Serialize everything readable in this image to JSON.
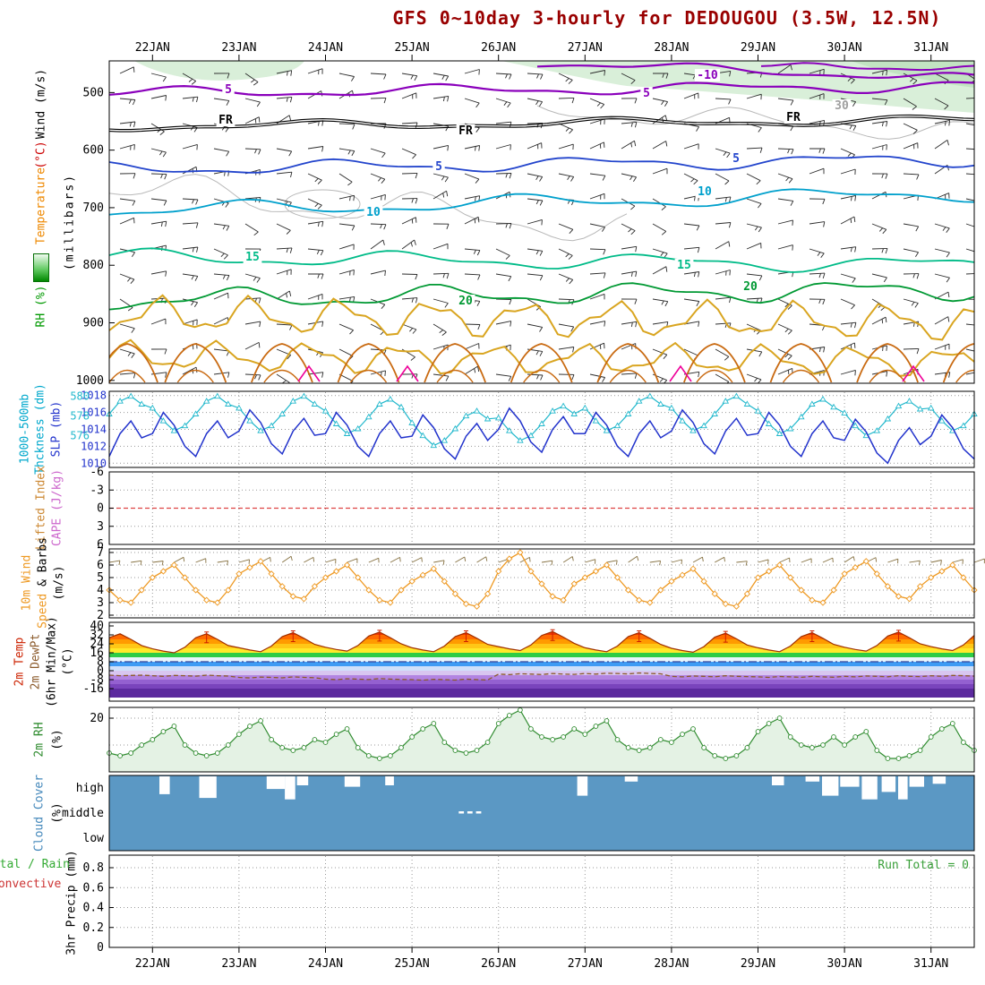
{
  "title": {
    "text": "GFS 0~10day 3-hourly for DEDOUGOU (3.5W, 12.5N)",
    "color": "#990000"
  },
  "x_axis": {
    "day_labels": [
      "22JAN",
      "23JAN",
      "24JAN",
      "25JAN",
      "26JAN",
      "27JAN",
      "28JAN",
      "29JAN",
      "30JAN",
      "31JAN"
    ]
  },
  "left_labels": {
    "p1": [
      {
        "text": "Wind (m/s)",
        "color": "#000000"
      },
      {
        "text": "(°C)",
        "color": "#cc0000"
      },
      {
        "text": "Temperature",
        "color": "#ee8800"
      },
      {
        "text": "RH (%)",
        "color": "#009900"
      },
      {
        "text": "(millibars)",
        "color": "#000000"
      }
    ],
    "p2": [
      {
        "text": "1000-500mb",
        "color": "#00a8cc"
      },
      {
        "text": "Thckness (dm)",
        "color": "#00a8cc"
      },
      {
        "text": "SLP (mb)",
        "color": "#2233cc"
      }
    ],
    "p3": [
      {
        "text": "Lifted Index",
        "color": "#cc8833"
      },
      {
        "text": "CAPE (J/kg)",
        "color": "#cc66cc"
      }
    ],
    "p4": [
      {
        "text": "10m Wind",
        "color": "#ee9922"
      },
      {
        "text": "Speed",
        "color": "#ee9922"
      },
      {
        "text": "& Barbs",
        "color": "#000000"
      },
      {
        "text": "(m/s)",
        "color": "#000000"
      }
    ],
    "p5": [
      {
        "text": "2m Temp",
        "color": "#cc2200"
      },
      {
        "text": "2m DewPt",
        "color": "#8b5a2b"
      },
      {
        "text": "(6hr Min/Max)",
        "color": "#000000"
      },
      {
        "text": "(°C)",
        "color": "#000000"
      }
    ],
    "p6": [
      {
        "text": "2m RH",
        "color": "#2e8b2e"
      },
      {
        "text": "(%)",
        "color": "#000000"
      }
    ],
    "p7": [
      {
        "text": "Cloud Cover",
        "color": "#4488bb"
      },
      {
        "text": "(%)",
        "color": "#000000"
      }
    ],
    "p8": [
      {
        "text": "Total / Rain",
        "color": "#33aa33"
      },
      {
        "text": "Convective",
        "color": "#cc3333"
      },
      {
        "text": "3hr Precip (mm)",
        "color": "#000000"
      }
    ]
  },
  "chart_data": {
    "time": {
      "points": 81,
      "step_hours": 3,
      "first_day_label": "22JAN",
      "last_day_label": "31JAN"
    },
    "upper_air": {
      "type": "contour+barbs",
      "yticks": [
        500,
        600,
        700,
        800,
        900,
        1000
      ],
      "shading_color": "#d9efd9",
      "shading_color_dense": "#c2e4c2",
      "barb_color": "#2b2b2b",
      "contour_labels": [
        {
          "id": "purple-top-right",
          "label": "-10",
          "color": "#8a00bb"
        },
        {
          "id": "purple-main",
          "label": "5",
          "color": "#8a00bb"
        },
        {
          "id": "freezing-line",
          "label": "FR",
          "color": "#000000"
        },
        {
          "id": "blue-5",
          "label": "5",
          "color": "#2244cc"
        },
        {
          "id": "cyan-10",
          "label": "10",
          "color": "#00a0cc"
        },
        {
          "id": "teal-15",
          "label": "15",
          "color": "#00bb88"
        },
        {
          "id": "green-20",
          "label": "20",
          "color": "#009933"
        },
        {
          "id": "gray-rh",
          "label": "30",
          "color": "#9f9f9f"
        },
        {
          "id": "orange-rh",
          "label": "",
          "color": "#d9a520"
        },
        {
          "id": "orange-rh-inner",
          "label": "",
          "color": "#c96a11"
        },
        {
          "id": "magenta",
          "label": "",
          "color": "#ee0099"
        }
      ]
    },
    "slp_thickness": {
      "type": "line",
      "slp_ticks": [
        1018,
        1016,
        1014,
        1012,
        1010
      ],
      "thickness_ticks": [
        580,
        578,
        576
      ],
      "slp_color": "#2233cc",
      "thickness_color": "#22b8cc",
      "slp": [
        1010.8,
        1013.5,
        1015,
        1013,
        1013.5,
        1016,
        1014.5,
        1012,
        1010.8,
        1013.5,
        1015,
        1013,
        1013.8,
        1016.3,
        1014.8,
        1012.3,
        1011.1,
        1013.8,
        1015.3,
        1013.3,
        1013.5,
        1016,
        1014.5,
        1012,
        1010.8,
        1013.5,
        1015,
        1013,
        1013.2,
        1015.7,
        1014.2,
        1011.7,
        1010.5,
        1013.2,
        1014.7,
        1012.7,
        1014,
        1016.5,
        1015,
        1012.5,
        1011.3,
        1014,
        1015.5,
        1013.5,
        1013.5,
        1016,
        1014.5,
        1012,
        1010.8,
        1013.5,
        1015,
        1013,
        1013.8,
        1016.3,
        1014.8,
        1012.3,
        1011.1,
        1013.8,
        1015.3,
        1013.3,
        1013.5,
        1016,
        1014.5,
        1012,
        1010.8,
        1013.5,
        1015,
        1013,
        1012.7,
        1015.2,
        1013.7,
        1011.2,
        1010,
        1012.7,
        1014.2,
        1012.2,
        1013.2,
        1015.7,
        1014.2,
        1011.7,
        1010.5
      ],
      "thickness": [
        578.2,
        579.5,
        580,
        579.2,
        578.8,
        577.5,
        576.5,
        577,
        578.2,
        579.5,
        580,
        579.2,
        578.8,
        577.5,
        576.5,
        577,
        578.2,
        579.5,
        580,
        579.2,
        578.5,
        577.2,
        576.2,
        576.7,
        577.9,
        579.2,
        579.7,
        578.9,
        577.3,
        576,
        575,
        575.5,
        576.7,
        578,
        578.5,
        577.7,
        577.8,
        576.5,
        575.5,
        576,
        577.2,
        578.5,
        579,
        578.2,
        578.8,
        577.5,
        576.5,
        577,
        578.2,
        579.5,
        580,
        579.2,
        578.8,
        577.5,
        576.5,
        577,
        578.2,
        579.5,
        580,
        579.2,
        578.5,
        577.2,
        576.2,
        576.7,
        577.9,
        579.2,
        579.7,
        578.9,
        578.3,
        577,
        576,
        576.5,
        577.7,
        579,
        579.5,
        578.7,
        578.8,
        577.5,
        576.5,
        577,
        578.2
      ]
    },
    "lifted_index_cape": {
      "yticks": [
        -6,
        -3,
        0,
        3,
        6
      ],
      "zero_line_color": "#dd4444",
      "series_visible": false
    },
    "wind_10m": {
      "yticks": [
        7,
        6,
        5,
        4,
        3,
        2
      ],
      "color": "#ee9922",
      "barb_color": "#857040",
      "values": [
        4,
        3.2,
        3,
        4,
        5,
        5.5,
        6,
        5,
        4,
        3.2,
        3,
        4,
        5.3,
        5.8,
        6.3,
        5.3,
        4.3,
        3.5,
        3.3,
        4.3,
        5,
        5.5,
        6,
        5,
        4,
        3.2,
        3,
        4,
        4.7,
        5.2,
        5.7,
        4.7,
        3.7,
        2.9,
        2.7,
        3.7,
        5.5,
        6.5,
        7,
        5.5,
        4.5,
        3.5,
        3.2,
        4.5,
        5,
        5.5,
        6,
        5,
        4,
        3.2,
        3,
        4,
        4.7,
        5.2,
        5.7,
        4.7,
        3.7,
        2.9,
        2.7,
        3.7,
        5,
        5.5,
        6,
        5,
        4,
        3.2,
        3,
        4,
        5.3,
        5.8,
        6.3,
        5.3,
        4.3,
        3.5,
        3.3,
        4.3,
        5,
        5.5,
        6,
        5,
        4
      ]
    },
    "temp_2m": {
      "yticks": [
        40,
        32,
        24,
        16,
        8,
        0,
        -8,
        -16
      ],
      "temp_color": "#a03000",
      "dewpoint_color": "#8b5a2b",
      "refline_color": "#334499",
      "max_marker_color": "#cc2200",
      "temp": [
        29.5,
        33,
        28,
        22.5,
        19.5,
        17.5,
        16,
        21,
        29.5,
        33,
        28,
        22.5,
        20.5,
        18.5,
        17,
        22,
        30.5,
        34,
        29,
        23.5,
        21,
        19,
        17.5,
        22.5,
        31,
        34.5,
        29.5,
        24,
        20.5,
        18.5,
        17,
        22,
        30.5,
        34,
        29,
        23.5,
        21.5,
        19.5,
        18,
        23,
        31.5,
        35,
        30,
        24.5,
        20.5,
        18.5,
        17,
        22,
        30.5,
        34,
        29,
        23.5,
        20,
        18,
        16.5,
        21.5,
        30,
        33.5,
        28.5,
        23,
        20.5,
        18.5,
        17,
        22,
        30.5,
        34,
        29,
        23.5,
        21,
        19,
        17.5,
        22.5,
        31,
        34.5,
        29.5,
        24,
        21.5,
        19.5,
        18,
        23,
        31.5
      ],
      "dewpoint": [
        -4,
        -4.5,
        -4.2,
        -4,
        -4.5,
        -5,
        -4.2,
        -4.5,
        -4.9,
        -4,
        -4.5,
        -4.8,
        -6,
        -6.5,
        -5.7,
        -6,
        -6.4,
        -5.5,
        -6,
        -6.3,
        -7.5,
        -8,
        -7.2,
        -7.5,
        -7.9,
        -7,
        -7.5,
        -7.8,
        -8,
        -8.5,
        -7.7,
        -8,
        -8.4,
        -7.5,
        -8,
        -8.3,
        -3,
        -3.5,
        -2.7,
        -3,
        -3.4,
        -2.5,
        -3,
        -3.3,
        -2.5,
        -3,
        -2.2,
        -2.5,
        -2.9,
        -2,
        -2.5,
        -2.8,
        -5,
        -5.5,
        -4.7,
        -5,
        -5.4,
        -4.5,
        -5,
        -5.3,
        -5.5,
        -6,
        -5.2,
        -5.5,
        -5.9,
        -5,
        -5.5,
        -5.8,
        -5,
        -5.5,
        -4.7,
        -5,
        -5.4,
        -4.5,
        -5,
        -5.3,
        -4.5,
        -5,
        -4.2,
        -4.5,
        -4.9
      ],
      "bands": [
        [
          -24,
          -16,
          "#5c2a9e"
        ],
        [
          -16,
          -12,
          "#7a44bc"
        ],
        [
          -12,
          -8,
          "#9460d0"
        ],
        [
          -8,
          -4,
          "#b284e2"
        ],
        [
          -4,
          0,
          "#d8c6f0"
        ],
        [
          0,
          4,
          "#cfe0fa"
        ],
        [
          4,
          8,
          "#3e9bf4"
        ],
        [
          8,
          12,
          "#e9f5fd"
        ],
        [
          12,
          16,
          "#2ecc45"
        ],
        [
          16,
          20,
          "#ffe92a"
        ],
        [
          20,
          24,
          "#ffc716"
        ],
        [
          24,
          28,
          "#ff9b00"
        ],
        [
          28,
          32,
          "#ff6a00"
        ],
        [
          32,
          36,
          "#f03500"
        ],
        [
          36,
          40,
          "#c80000"
        ]
      ]
    },
    "rh_2m": {
      "yticks": [
        20
      ],
      "color": "#2e8b2e",
      "fill": "#e4f2e4",
      "values": [
        7,
        6,
        7,
        10,
        12,
        15,
        17,
        10,
        7,
        6,
        7,
        10,
        14,
        17,
        19,
        12,
        9,
        8,
        9,
        12,
        11,
        14,
        16,
        9,
        6,
        5,
        6,
        9,
        13,
        16,
        18,
        11,
        8,
        7,
        8,
        11,
        18,
        21,
        23,
        16,
        13,
        12,
        13,
        16,
        14,
        17,
        19,
        12,
        9,
        8,
        9,
        12,
        11,
        14,
        16,
        9,
        6,
        5,
        6,
        9,
        15,
        18,
        20,
        13,
        10,
        9,
        10,
        13,
        10,
        13,
        15,
        8,
        5,
        5,
        6,
        8,
        13,
        16,
        18,
        11,
        8
      ]
    },
    "cloud_cover": {
      "rows": [
        "high",
        "middle",
        "low"
      ],
      "background_color": "#5b98c4",
      "high_cloud_bars": [
        [
          0.058,
          0.07,
          0.24
        ],
        [
          0.104,
          0.124,
          0.29
        ],
        [
          0.182,
          0.203,
          0.17
        ],
        [
          0.203,
          0.215,
          0.31
        ],
        [
          0.217,
          0.23,
          0.12
        ],
        [
          0.272,
          0.29,
          0.14
        ],
        [
          0.319,
          0.329,
          0.12
        ],
        [
          0.541,
          0.553,
          0.26
        ],
        [
          0.596,
          0.611,
          0.07
        ],
        [
          0.766,
          0.78,
          0.12
        ],
        [
          0.805,
          0.821,
          0.07
        ],
        [
          0.824,
          0.843,
          0.26
        ],
        [
          0.845,
          0.867,
          0.14
        ],
        [
          0.87,
          0.888,
          0.31
        ],
        [
          0.893,
          0.909,
          0.21
        ],
        [
          0.912,
          0.923,
          0.31
        ],
        [
          0.925,
          0.942,
          0.14
        ],
        [
          0.952,
          0.967,
          0.1
        ]
      ],
      "middle_cloud_dashes": [
        [
          0.404,
          0.41
        ],
        [
          0.414,
          0.42
        ],
        [
          0.424,
          0.43
        ]
      ]
    },
    "precip_3hr": {
      "yticks": [
        0.8,
        0.6,
        0.4,
        0.2,
        0
      ],
      "run_total_text": "Run Total = 0",
      "run_total_color": "#3aa03a",
      "values_all_zero": true
    }
  }
}
